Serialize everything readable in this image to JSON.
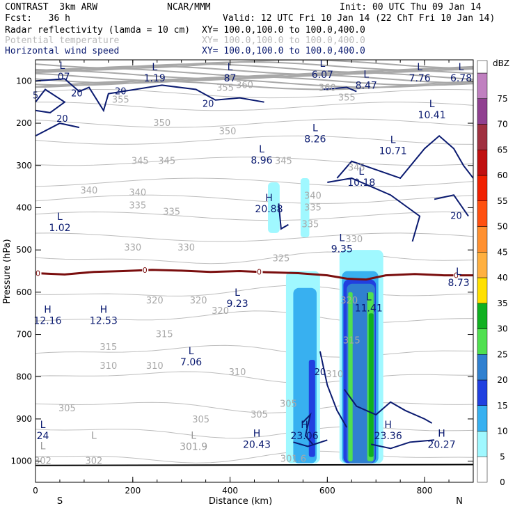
{
  "header": {
    "model": "CONTRAST  3km ARW",
    "org": "NCAR/MMM",
    "init": "Init: 00 UTC Thu 09 Jan 14",
    "fcst": "Fcst:   36 h",
    "valid": "Valid: 12 UTC Fri 10 Jan 14 (22 ChT Fri 10 Jan 14)"
  },
  "fields": [
    {
      "name": "Radar reflectivity (lamda = 10 cm)",
      "xy": "XY= 100.0,100.0 to 100.0,400.0",
      "color": "#000000"
    },
    {
      "name": "Potential temperature",
      "xy": "XY= 100.0,100.0 to 100.0,400.0",
      "color": "#b8b8b8"
    },
    {
      "name": "Horizontal wind speed",
      "xy": "XY= 100.0,100.0 to 100.0,400.0",
      "color": "#0a1a70"
    }
  ],
  "chart_data": {
    "type": "heatmap",
    "xlabel": "Distance (km)",
    "ylabel": "Pressure (hPa)",
    "xlim": [
      0,
      900
    ],
    "ylim": [
      1050,
      50
    ],
    "x_ticks": [
      0,
      200,
      400,
      600,
      800
    ],
    "y_ticks": [
      100,
      200,
      300,
      400,
      500,
      600,
      700,
      800,
      900,
      1000
    ],
    "x_end_labels": {
      "left": "S",
      "right": "N"
    },
    "colorbar": {
      "unit": "dBZ",
      "levels": [
        0,
        5,
        10,
        15,
        20,
        25,
        30,
        35,
        40,
        45,
        50,
        55,
        60,
        65,
        70,
        75
      ],
      "colors": [
        "#ffffff",
        "#a0f8ff",
        "#38b0f0",
        "#2040e0",
        "#3080d0",
        "#50e050",
        "#10b020",
        "#ffe000",
        "#ffb040",
        "#ff9030",
        "#ff5010",
        "#f02000",
        "#c01010",
        "#a03040",
        "#904090",
        "#c080c0"
      ]
    },
    "reflectivity_cells": [
      {
        "x": [
          515,
          585
        ],
        "p": [
          550,
          1005
        ],
        "dbz": 5
      },
      {
        "x": [
          530,
          578
        ],
        "p": [
          590,
          1005
        ],
        "dbz": 10
      },
      {
        "x": [
          562,
          575
        ],
        "p": [
          760,
          990
        ],
        "dbz": 15
      },
      {
        "x": [
          478,
          502
        ],
        "p": [
          340,
          460
        ],
        "dbz": 5
      },
      {
        "x": [
          545,
          563
        ],
        "p": [
          330,
          470
        ],
        "dbz": 5
      },
      {
        "x": [
          625,
          715
        ],
        "p": [
          500,
          1005
        ],
        "dbz": 5
      },
      {
        "x": [
          630,
          705
        ],
        "p": [
          550,
          1005
        ],
        "dbz": 10
      },
      {
        "x": [
          633,
          700
        ],
        "p": [
          570,
          1005
        ],
        "dbz": 15
      },
      {
        "x": [
          640,
          698
        ],
        "p": [
          580,
          1005
        ],
        "dbz": 20
      },
      {
        "x": [
          643,
          652
        ],
        "p": [
          600,
          1000
        ],
        "dbz": 25
      },
      {
        "x": [
          682,
          695
        ],
        "p": [
          600,
          1000
        ],
        "dbz": 25
      },
      {
        "x": [
          685,
          695
        ],
        "p": [
          650,
          990
        ],
        "dbz": 30
      }
    ],
    "freezing_level": {
      "label": "0",
      "x": [
        0,
        60,
        120,
        180,
        240,
        300,
        360,
        420,
        480,
        540,
        600,
        640,
        680,
        720,
        780,
        840,
        900
      ],
      "p": [
        555,
        558,
        552,
        550,
        547,
        549,
        552,
        550,
        553,
        555,
        560,
        568,
        570,
        560,
        557,
        560,
        560
      ]
    },
    "theta_labels": [
      {
        "text": "355",
        "x": 175,
        "p": 145
      },
      {
        "text": "355",
        "x": 390,
        "p": 117
      },
      {
        "text": "360",
        "x": 430,
        "p": 110
      },
      {
        "text": "360",
        "x": 600,
        "p": 117
      },
      {
        "text": "355",
        "x": 640,
        "p": 140
      },
      {
        "text": "350",
        "x": 260,
        "p": 200
      },
      {
        "text": "350",
        "x": 395,
        "p": 220
      },
      {
        "text": "345",
        "x": 215,
        "p": 290
      },
      {
        "text": "345",
        "x": 270,
        "p": 290
      },
      {
        "text": "345",
        "x": 510,
        "p": 290
      },
      {
        "text": "345",
        "x": 660,
        "p": 305
      },
      {
        "text": "340",
        "x": 110,
        "p": 360
      },
      {
        "text": "340",
        "x": 210,
        "p": 365
      },
      {
        "text": "340",
        "x": 570,
        "p": 372
      },
      {
        "text": "335",
        "x": 210,
        "p": 395
      },
      {
        "text": "335",
        "x": 280,
        "p": 410
      },
      {
        "text": "335",
        "x": 570,
        "p": 400
      },
      {
        "text": "335",
        "x": 565,
        "p": 440
      },
      {
        "text": "330",
        "x": 200,
        "p": 495
      },
      {
        "text": "330",
        "x": 310,
        "p": 495
      },
      {
        "text": "330",
        "x": 655,
        "p": 475
      },
      {
        "text": "325",
        "x": 505,
        "p": 520
      },
      {
        "text": "320",
        "x": 245,
        "p": 620
      },
      {
        "text": "320",
        "x": 335,
        "p": 620
      },
      {
        "text": "320",
        "x": 380,
        "p": 645
      },
      {
        "text": "320",
        "x": 645,
        "p": 620
      },
      {
        "text": "315",
        "x": 150,
        "p": 730
      },
      {
        "text": "315",
        "x": 265,
        "p": 700
      },
      {
        "text": "315",
        "x": 650,
        "p": 715
      },
      {
        "text": "310",
        "x": 150,
        "p": 775
      },
      {
        "text": "310",
        "x": 245,
        "p": 775
      },
      {
        "text": "310",
        "x": 415,
        "p": 790
      },
      {
        "text": "310",
        "x": 615,
        "p": 795
      },
      {
        "text": "305",
        "x": 65,
        "p": 875
      },
      {
        "text": "305",
        "x": 340,
        "p": 902
      },
      {
        "text": "305",
        "x": 460,
        "p": 890
      },
      {
        "text": "305",
        "x": 520,
        "p": 865
      },
      {
        "text": "302",
        "x": 15,
        "p": 1000
      },
      {
        "text": "302",
        "x": 120,
        "p": 1000
      },
      {
        "text": "301.6",
        "x": 530,
        "p": 995
      }
    ],
    "hl_labels": [
      {
        "mark": "L",
        "value": ".07",
        "x": 55,
        "p": 85
      },
      {
        "mark": "L",
        "value": "1.19",
        "x": 245,
        "p": 88
      },
      {
        "mark": "L",
        "value": "87",
        "x": 400,
        "p": 88
      },
      {
        "mark": "L",
        "value": "6.07",
        "x": 590,
        "p": 80
      },
      {
        "mark": "L",
        "value": "8.47",
        "x": 680,
        "p": 105
      },
      {
        "mark": "L",
        "value": "7.76",
        "x": 790,
        "p": 88
      },
      {
        "mark": "L",
        "value": "6.78",
        "x": 875,
        "p": 88
      },
      {
        "mark": "L",
        "value": "10.41",
        "x": 815,
        "p": 175
      },
      {
        "mark": "L",
        "value": "8.26",
        "x": 575,
        "p": 232
      },
      {
        "mark": "L",
        "value": "10.71",
        "x": 735,
        "p": 260
      },
      {
        "mark": "L",
        "value": "8.96",
        "x": 465,
        "p": 282
      },
      {
        "mark": "L",
        "value": "10.18",
        "x": 670,
        "p": 335
      },
      {
        "mark": "H",
        "value": "20.88",
        "x": 480,
        "p": 398
      },
      {
        "mark": "L",
        "value": "1.02",
        "x": 50,
        "p": 442
      },
      {
        "mark": "L",
        "value": "9.35",
        "x": 630,
        "p": 492
      },
      {
        "mark": "L",
        "value": "8.73",
        "x": 870,
        "p": 572
      },
      {
        "mark": "L",
        "value": "9.23",
        "x": 415,
        "p": 622
      },
      {
        "mark": "L",
        "value": "11.41",
        "x": 685,
        "p": 632
      },
      {
        "mark": "H",
        "value": "12.16",
        "x": 25,
        "p": 662
      },
      {
        "mark": "H",
        "value": "12.53",
        "x": 140,
        "p": 662
      },
      {
        "mark": "L",
        "value": "7.06",
        "x": 320,
        "p": 760
      },
      {
        "mark": "L",
        "value": "24",
        "x": 15,
        "p": 935
      },
      {
        "mark": "H",
        "value": "20.43",
        "x": 455,
        "p": 955
      },
      {
        "mark": "H",
        "value": "23.06",
        "x": 553,
        "p": 935
      },
      {
        "mark": "H",
        "value": "23.36",
        "x": 725,
        "p": 935
      },
      {
        "mark": "H",
        "value": "20.27",
        "x": 835,
        "p": 955
      },
      {
        "mark": "L",
        "value": "",
        "x": 120,
        "p": 960
      },
      {
        "mark": "L",
        "value": "301.9",
        "x": 325,
        "p": 960
      },
      {
        "mark": "L",
        "value": "",
        "x": 15,
        "p": 985
      }
    ],
    "wind_labels": [
      {
        "text": "20",
        "x": 85,
        "p": 130
      },
      {
        "text": "20",
        "x": 175,
        "p": 125
      },
      {
        "text": "20",
        "x": 355,
        "p": 155
      },
      {
        "text": "20",
        "x": 55,
        "p": 190
      },
      {
        "text": "20",
        "x": 865,
        "p": 420
      },
      {
        "text": "20",
        "x": 585,
        "p": 790
      },
      {
        "text": "5",
        "x": 0,
        "p": 135
      }
    ]
  }
}
